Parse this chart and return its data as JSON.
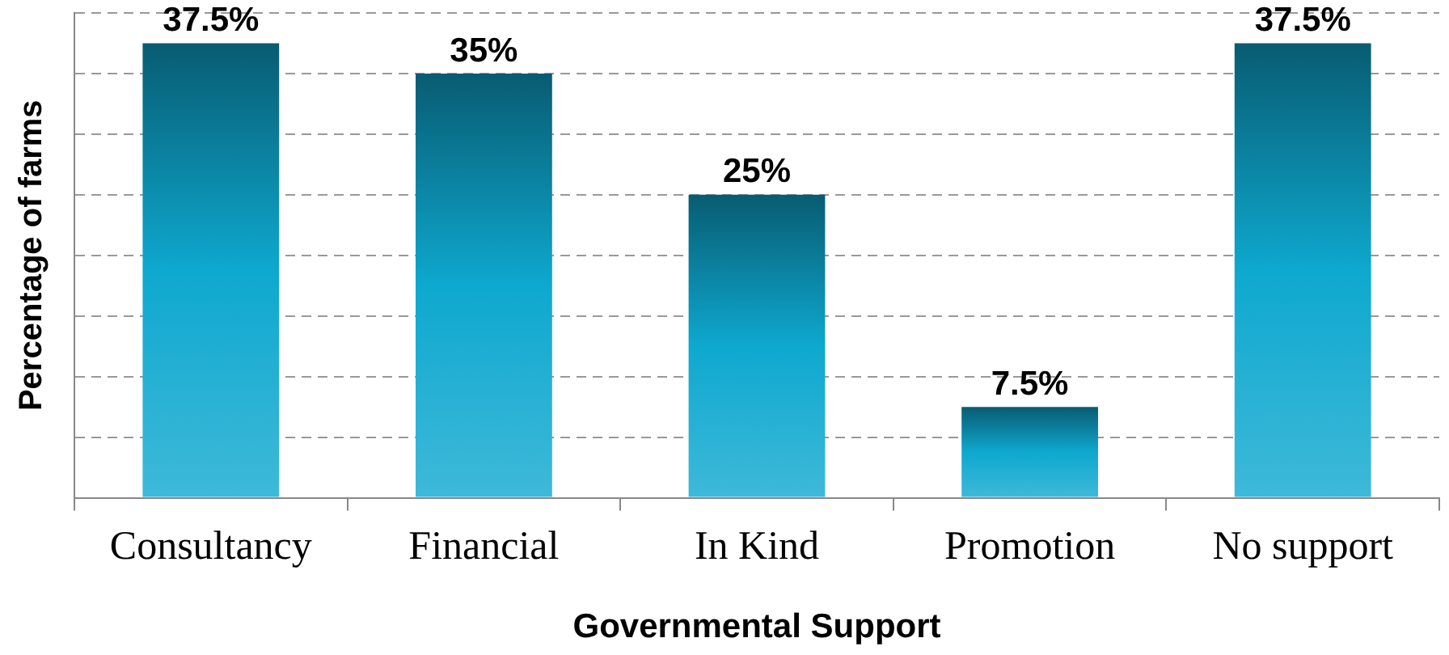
{
  "chart_data": {
    "type": "bar",
    "xlabel": "Governmental Support",
    "ylabel": "Percentage of farms",
    "categories": [
      "Consultancy",
      "Financial",
      "In Kind",
      "Promotion",
      "No support"
    ],
    "values": [
      37.5,
      35,
      25,
      7.5,
      37.5
    ],
    "color": "#0ea8cf",
    "value_labels": [
      "37.5%",
      "35%",
      "25%",
      "7.5%",
      "37.5%"
    ],
    "ylim": [
      0,
      40
    ],
    "yticks": [
      {
        "value": 0,
        "label": null
      },
      {
        "value": 5,
        "label": null
      },
      {
        "value": 10,
        "label": null
      },
      {
        "value": 15,
        "label": null
      },
      {
        "value": 20,
        "label": null
      },
      {
        "value": 25,
        "label": null
      },
      {
        "value": 30,
        "label": null
      },
      {
        "value": 35,
        "label": null
      },
      {
        "value": 40,
        "label": null
      }
    ],
    "grid": "y",
    "tick_labels": "x",
    "legend": false
  }
}
